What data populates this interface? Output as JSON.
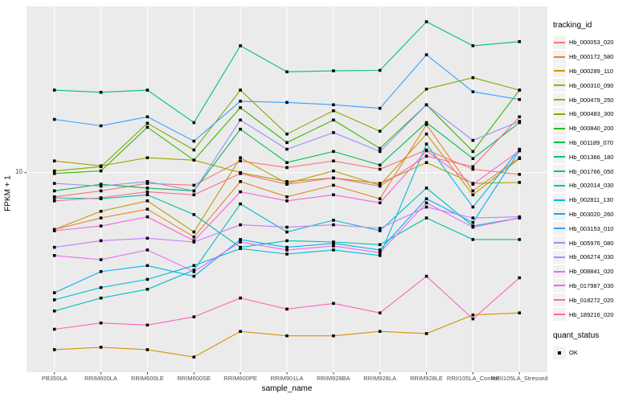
{
  "panel": {
    "background": "#EBEBEB",
    "grid_color": "#FFFFFF",
    "tick_color": "#333333",
    "tick_label_color": "#4D4D4D",
    "legend_key_background": "#F2F2F2"
  },
  "chart_data": {
    "type": "line",
    "title": "",
    "xlabel": "sample_name",
    "ylabel": "FPKM + 1",
    "x_categories": [
      "PB350LA",
      "RRIM600LA",
      "RRIM600LE",
      "RRIM600SE",
      "RRIM600PE",
      "RRIM901LA",
      "RRIM928BA",
      "RRIM928LA",
      "RRIM928LE",
      "RRII105LA_Control",
      "RRII105LA_Stressed"
    ],
    "y_axis": {
      "scale": "log10",
      "tick_labels": [
        "10"
      ],
      "tick_values": [
        10
      ],
      "ylim": [
        3.16,
        26.1
      ],
      "grid": "major-only"
    },
    "legend": {
      "color_title": "tracking_id",
      "shape_title": "quant_status",
      "shape_entries": [
        {
          "label": "OK",
          "marker": "filled-black-square"
        }
      ],
      "position": "right"
    },
    "point_shape": "filled-square",
    "point_color": "#000000",
    "series": [
      {
        "name": "Hb_000053_020",
        "color": "#F8766D",
        "values": [
          8.7,
          9.0,
          9.4,
          9.3,
          10.7,
          10.3,
          10.7,
          10.2,
          11.4,
          10.2,
          9.9
        ]
      },
      {
        "name": "Hb_000172_580",
        "color": "#EA8331",
        "values": [
          7.2,
          7.7,
          8.1,
          6.9,
          9.5,
          8.7,
          9.3,
          8.6,
          13.2,
          9.0,
          10.9
        ]
      },
      {
        "name": "Hb_000289_110",
        "color": "#D89000",
        "values": [
          3.6,
          3.65,
          3.6,
          3.45,
          4.0,
          3.9,
          3.9,
          4.0,
          3.95,
          4.4,
          4.45
        ]
      },
      {
        "name": "Hb_000310_090",
        "color": "#C09B00",
        "values": [
          7.2,
          8.0,
          8.5,
          7.1,
          10.9,
          9.4,
          10.1,
          9.3,
          12.5,
          8.8,
          10.85
        ]
      },
      {
        "name": "Hb_000479_250",
        "color": "#A3A500",
        "values": [
          10.7,
          10.4,
          10.9,
          10.75,
          10.0,
          9.5,
          9.7,
          9.4,
          10.6,
          9.4,
          9.45
        ]
      },
      {
        "name": "Hb_000483_300",
        "color": "#7CAE00",
        "values": [
          10.1,
          10.35,
          13.3,
          11.4,
          16.1,
          12.5,
          14.3,
          12.7,
          16.2,
          17.3,
          16.1
        ]
      },
      {
        "name": "Hb_000840_200",
        "color": "#39B600",
        "values": [
          9.95,
          10.1,
          13.0,
          10.75,
          14.55,
          11.9,
          13.55,
          11.5,
          14.8,
          11.3,
          16.1
        ]
      },
      {
        "name": "Hb_001189_070",
        "color": "#00BB4E",
        "values": [
          9.0,
          9.35,
          9.15,
          9.0,
          12.85,
          10.6,
          11.3,
          10.45,
          13.35,
          10.85,
          13.35
        ]
      },
      {
        "name": "Hb_001366_180",
        "color": "#00BF7D",
        "values": [
          16.1,
          15.9,
          16.1,
          13.35,
          20.8,
          17.9,
          18.0,
          18.05,
          23.9,
          20.8,
          21.3
        ]
      },
      {
        "name": "Hb_001766_050",
        "color": "#00C1A3",
        "values": [
          8.65,
          8.6,
          8.8,
          7.85,
          6.5,
          6.75,
          6.7,
          6.6,
          7.7,
          6.8,
          6.8
        ]
      },
      {
        "name": "Hb_002014_030",
        "color": "#00BFC4",
        "values": [
          4.5,
          4.85,
          5.1,
          5.7,
          8.35,
          7.1,
          7.6,
          7.15,
          9.15,
          7.35,
          7.7
        ]
      },
      {
        "name": "Hb_002811_130",
        "color": "#00BAE0",
        "values": [
          4.8,
          5.15,
          5.4,
          5.85,
          6.45,
          6.25,
          6.4,
          6.2,
          11.8,
          8.2,
          11.45
        ]
      },
      {
        "name": "Hb_003020_260",
        "color": "#00B0F6",
        "values": [
          5.0,
          5.65,
          5.85,
          5.5,
          6.8,
          6.5,
          6.65,
          6.4,
          8.6,
          7.5,
          11.35
        ]
      },
      {
        "name": "Hb_003153_010",
        "color": "#35A2FF",
        "values": [
          13.6,
          13.1,
          13.8,
          12.0,
          15.1,
          15.0,
          14.8,
          14.5,
          19.75,
          15.95,
          15.25
        ]
      },
      {
        "name": "Hb_005976_080",
        "color": "#9590FF",
        "values": [
          9.4,
          9.25,
          9.5,
          9.0,
          13.55,
          11.45,
          12.6,
          11.3,
          14.8,
          12.05,
          13.45
        ]
      },
      {
        "name": "Hb_006274_030",
        "color": "#C77CFF",
        "values": [
          6.5,
          6.75,
          6.85,
          6.7,
          7.4,
          7.3,
          7.4,
          7.25,
          8.2,
          7.7,
          7.75
        ]
      },
      {
        "name": "Hb_008841_020",
        "color": "#E76BF3",
        "values": [
          6.2,
          6.05,
          6.4,
          5.65,
          6.7,
          6.4,
          6.55,
          6.3,
          8.4,
          7.3,
          7.7
        ]
      },
      {
        "name": "Hb_017987_030",
        "color": "#FA62DB",
        "values": [
          7.15,
          7.35,
          7.75,
          6.75,
          8.95,
          8.5,
          8.8,
          8.4,
          11.35,
          9.35,
          11.35
        ]
      },
      {
        "name": "Hb_018272_020",
        "color": "#FF62BC",
        "values": [
          4.05,
          4.2,
          4.15,
          4.35,
          4.85,
          4.55,
          4.7,
          4.45,
          5.5,
          4.3,
          5.45
        ]
      },
      {
        "name": "Hb_189216_020",
        "color": "#FF6A98",
        "values": [
          8.5,
          8.65,
          8.95,
          8.8,
          9.95,
          9.35,
          9.7,
          9.25,
          11.0,
          10.35,
          13.8
        ]
      }
    ]
  }
}
